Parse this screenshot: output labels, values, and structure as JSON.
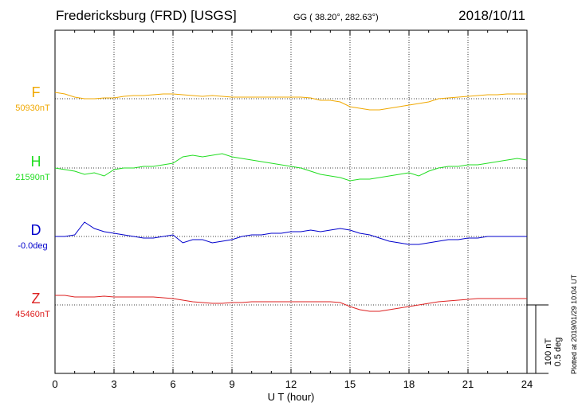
{
  "header": {
    "station": "Fredericksburg (FRD)  [USGS]",
    "coords": "GG ( 38.20°, 282.63°)",
    "date": "2018/10/11"
  },
  "footer": {
    "plotted": "Plotted at 2019/01/29 10:04 UT"
  },
  "chart_data": {
    "type": "line",
    "xlabel": "U T (hour)",
    "xlim": [
      0,
      24
    ],
    "xticks": [
      0,
      3,
      6,
      9,
      12,
      15,
      18,
      21,
      24
    ],
    "grid": true,
    "scale": {
      "label_nT": "100 nT",
      "label_deg": "0.5 deg"
    },
    "series": [
      {
        "name": "F",
        "baseline_label": "50930nT",
        "color": "#f0a800",
        "x": [
          0,
          0.5,
          1,
          1.5,
          2,
          2.5,
          3,
          3.5,
          4,
          4.5,
          5,
          5.5,
          6,
          6.5,
          7,
          7.5,
          8,
          8.5,
          9,
          9.5,
          10,
          10.5,
          11,
          11.5,
          12,
          12.5,
          13,
          13.5,
          14,
          14.5,
          15,
          15.5,
          16,
          16.5,
          17,
          17.5,
          18,
          18.5,
          19,
          19.5,
          20,
          20.5,
          21,
          21.5,
          22,
          22.5,
          23,
          23.5,
          24
        ],
        "y": [
          8,
          6,
          2,
          0,
          0,
          1,
          1,
          3,
          4,
          4,
          5,
          6,
          6,
          5,
          4,
          3,
          4,
          3,
          2,
          2,
          2,
          2,
          2,
          2,
          2,
          2,
          1,
          -2,
          -2,
          -4,
          -10,
          -12,
          -14,
          -14,
          -12,
          -10,
          -8,
          -6,
          -4,
          0,
          1,
          2,
          3,
          4,
          5,
          5,
          6,
          6,
          6
        ]
      },
      {
        "name": "H",
        "baseline_label": "21590nT",
        "color": "#22dd22",
        "x": [
          0,
          0.5,
          1,
          1.5,
          2,
          2.5,
          3,
          3.5,
          4,
          4.5,
          5,
          5.5,
          6,
          6.5,
          7,
          7.5,
          8,
          8.5,
          9,
          9.5,
          10,
          10.5,
          11,
          11.5,
          12,
          12.5,
          13,
          13.5,
          14,
          14.5,
          15,
          15.5,
          16,
          16.5,
          17,
          17.5,
          18,
          18.5,
          19,
          19.5,
          20,
          20.5,
          21,
          21.5,
          22,
          22.5,
          23,
          23.5,
          24
        ],
        "y": [
          0,
          -2,
          -4,
          -8,
          -6,
          -10,
          -2,
          0,
          0,
          2,
          2,
          4,
          6,
          14,
          16,
          14,
          16,
          18,
          14,
          12,
          10,
          8,
          6,
          4,
          2,
          0,
          -4,
          -8,
          -10,
          -12,
          -16,
          -14,
          -14,
          -12,
          -10,
          -8,
          -6,
          -10,
          -4,
          0,
          2,
          2,
          4,
          4,
          6,
          8,
          10,
          12,
          10
        ]
      },
      {
        "name": "D",
        "baseline_label": "-0.0deg",
        "color": "#0000cc",
        "x": [
          0,
          0.5,
          1,
          1.5,
          2,
          2.5,
          3,
          3.5,
          4,
          4.5,
          5,
          5.5,
          6,
          6.5,
          7,
          7.5,
          8,
          8.5,
          9,
          9.5,
          10,
          10.5,
          11,
          11.5,
          12,
          12.5,
          13,
          13.5,
          14,
          14.5,
          15,
          15.5,
          16,
          16.5,
          17,
          17.5,
          18,
          18.5,
          19,
          19.5,
          20,
          20.5,
          21,
          21.5,
          22,
          22.5,
          23,
          23.5,
          24
        ],
        "y": [
          0,
          0,
          2,
          18,
          10,
          6,
          4,
          2,
          0,
          -2,
          -2,
          0,
          2,
          -8,
          -4,
          -4,
          -8,
          -6,
          -4,
          0,
          2,
          2,
          4,
          4,
          6,
          6,
          8,
          6,
          8,
          10,
          8,
          4,
          2,
          -2,
          -6,
          -8,
          -10,
          -10,
          -8,
          -6,
          -4,
          -4,
          -2,
          -2,
          0,
          0,
          0,
          0,
          0
        ]
      },
      {
        "name": "Z",
        "baseline_label": "45460nT",
        "color": "#dd2222",
        "x": [
          0,
          0.5,
          1,
          1.5,
          2,
          2.5,
          3,
          3.5,
          4,
          4.5,
          5,
          5.5,
          6,
          6.5,
          7,
          7.5,
          8,
          8.5,
          9,
          9.5,
          10,
          10.5,
          11,
          11.5,
          12,
          12.5,
          13,
          13.5,
          14,
          14.5,
          15,
          15.5,
          16,
          16.5,
          17,
          17.5,
          18,
          18.5,
          19,
          19.5,
          20,
          20.5,
          21,
          21.5,
          22,
          22.5,
          23,
          23.5,
          24
        ],
        "y": [
          12,
          12,
          10,
          10,
          10,
          11,
          10,
          10,
          10,
          10,
          10,
          9,
          8,
          6,
          4,
          3,
          2,
          2,
          3,
          3,
          4,
          4,
          4,
          4,
          4,
          4,
          4,
          4,
          4,
          3,
          -2,
          -6,
          -8,
          -8,
          -6,
          -4,
          -2,
          0,
          2,
          4,
          5,
          6,
          7,
          8,
          8,
          8,
          8,
          8,
          8
        ]
      }
    ]
  }
}
